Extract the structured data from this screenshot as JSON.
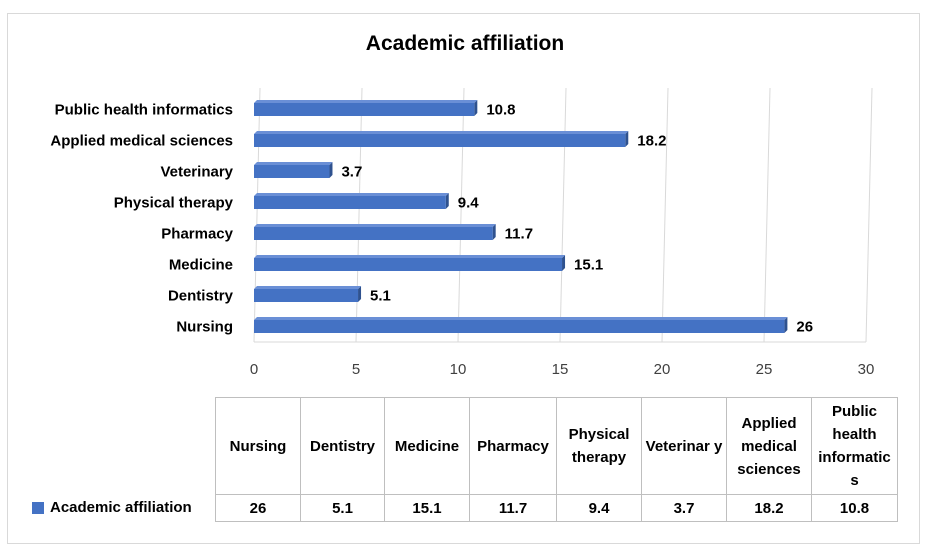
{
  "chart_data": {
    "type": "bar",
    "orientation": "horizontal",
    "title": "Academic affiliation",
    "categories": [
      "Nursing",
      "Dentistry",
      "Medicine",
      "Pharmacy",
      "Physical therapy",
      "Veterinary",
      "Applied medical sciences",
      "Public health informatics"
    ],
    "series": [
      {
        "name": "Academic affiliation",
        "values": [
          26,
          5.1,
          15.1,
          11.7,
          9.4,
          3.7,
          18.2,
          10.8
        ]
      }
    ],
    "value_labels": [
      "26",
      "5.1",
      "15.1",
      "11.7",
      "9.4",
      "3.7",
      "18.2",
      "10.8"
    ],
    "xlim": [
      0,
      30
    ],
    "x_ticks": [
      "0",
      "5",
      "10",
      "15",
      "20",
      "25",
      "30"
    ],
    "grid": true,
    "legend": "data table below chart",
    "bar_color": "#4472c4"
  },
  "table": {
    "headers": [
      "Nursing",
      "Dentistry",
      "Medicine",
      "Pharmacy",
      "Physical therapy",
      "Veterinar y",
      "Applied medical sciences",
      "Public health informatic s"
    ],
    "row_label": "Academic affiliation",
    "values": [
      "26",
      "5.1",
      "15.1",
      "11.7",
      "9.4",
      "3.7",
      "18.2",
      "10.8"
    ]
  }
}
